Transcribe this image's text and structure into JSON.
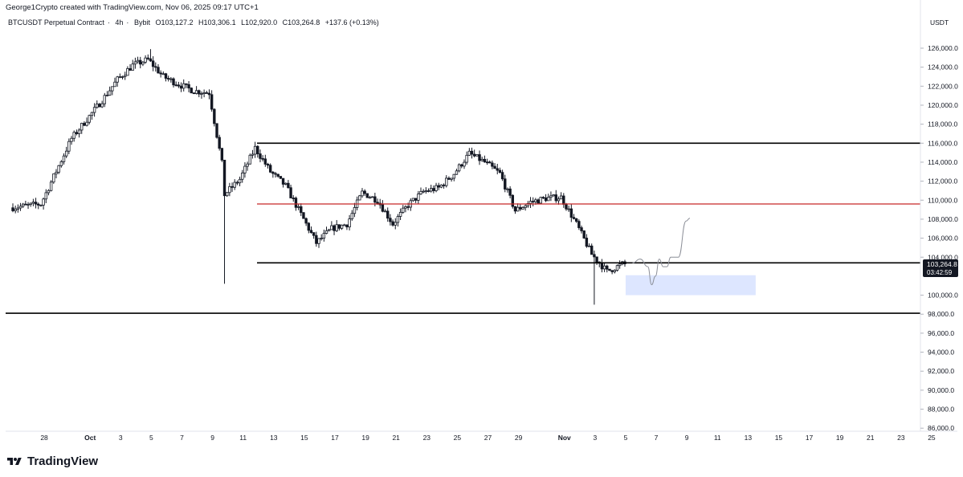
{
  "header": {
    "credit": "George1Crypto created with TradingView.com, Nov 06, 2025 09:17 UTC+1"
  },
  "symbol": {
    "name": "BTCUSDT Perpetual Contract",
    "interval": "4h",
    "exchange": "Bybit",
    "open": "O103,127.2",
    "high": "H103,306.1",
    "low": "L102,920.0",
    "close": "C103,264.8",
    "change": "+137.6 (+0.13%)"
  },
  "branding": {
    "name": "TradingView"
  },
  "chart_data": {
    "type": "candlestick",
    "currency": "USDT",
    "x_tick_labels": [
      "28",
      "Oct",
      "3",
      "5",
      "7",
      "9",
      "11",
      "13",
      "15",
      "17",
      "19",
      "21",
      "23",
      "25",
      "27",
      "29",
      "Nov",
      "3",
      "5",
      "7",
      "9",
      "11",
      "13",
      "15",
      "17",
      "19",
      "21",
      "23",
      "25"
    ],
    "y_tick_labels": [
      "126,000.0",
      "124,000.0",
      "122,000.0",
      "120,000.0",
      "118,000.0",
      "116,000.0",
      "114,000.0",
      "112,000.0",
      "110,000.0",
      "108,000.0",
      "106,000.0",
      "104,000.0",
      "100,000.0",
      "98,000.0",
      "96,000.0",
      "94,000.0",
      "92,000.0",
      "90,000.0",
      "88,000.0",
      "86,000.0"
    ],
    "ylim": [
      85200,
      129000
    ],
    "last_price": {
      "label": "103,264.8",
      "countdown": "03:42:59",
      "value": 103264.8
    },
    "price_path": [
      [
        "2025-09-27",
        109200
      ],
      [
        "2025-09-29",
        109600
      ],
      [
        "2025-10-01",
        116500
      ],
      [
        "2025-10-03",
        120500
      ],
      [
        "2025-10-04",
        122700
      ],
      [
        "2025-10-05",
        124200
      ],
      [
        "2025-10-06",
        124800
      ],
      [
        "2025-10-07",
        123000
      ],
      [
        "2025-10-08",
        122200
      ],
      [
        "2025-10-09",
        121500
      ],
      [
        "2025-10-10",
        121300
      ],
      [
        "2025-10-10T21:00",
        113500
      ],
      [
        "2025-10-11",
        110600
      ],
      [
        "2025-10-12",
        112200
      ],
      [
        "2025-10-13",
        115500
      ],
      [
        "2025-10-14",
        113000
      ],
      [
        "2025-10-15",
        111500
      ],
      [
        "2025-10-16",
        108500
      ],
      [
        "2025-10-17",
        105500
      ],
      [
        "2025-10-18",
        107000
      ],
      [
        "2025-10-19",
        107500
      ],
      [
        "2025-10-20",
        110800
      ],
      [
        "2025-10-21",
        110000
      ],
      [
        "2025-10-22",
        107500
      ],
      [
        "2025-10-23",
        109500
      ],
      [
        "2025-10-24",
        110900
      ],
      [
        "2025-10-25",
        111300
      ],
      [
        "2025-10-26",
        112800
      ],
      [
        "2025-10-27",
        114900
      ],
      [
        "2025-10-28",
        114000
      ],
      [
        "2025-10-29",
        112800
      ],
      [
        "2025-10-30",
        108900
      ],
      [
        "2025-10-31",
        109800
      ],
      [
        "2025-11-01",
        110200
      ],
      [
        "2025-11-02",
        110300
      ],
      [
        "2025-11-03",
        107500
      ],
      [
        "2025-11-04",
        104300
      ],
      [
        "2025-11-05",
        102500
      ],
      [
        "2025-11-06",
        103264.8
      ]
    ],
    "wick_extremes": [
      [
        "2025-10-10T21:00",
        101200
      ],
      [
        "2025-11-04",
        99000
      ],
      [
        "2025-10-06",
        125900
      ]
    ],
    "levels": [
      {
        "name": "range-high",
        "value": 116000,
        "color": "#000000"
      },
      {
        "name": "mid-range",
        "value": 109600,
        "color": "#c62828"
      },
      {
        "name": "range-low",
        "value": 103400,
        "color": "#000000"
      },
      {
        "name": "support",
        "value": 98100,
        "color": "#000000"
      }
    ],
    "zone": {
      "from": "2025-11-05",
      "to": "2025-11-13T12:00",
      "low": 100000,
      "high": 102100,
      "color": "#dde6ff"
    },
    "projection": [
      [
        "2025-11-06T12:00",
        103400
      ],
      [
        "2025-11-07",
        103800
      ],
      [
        "2025-11-07T12:00",
        103000
      ],
      [
        "2025-11-07T18:00",
        101100
      ],
      [
        "2025-11-08",
        102000
      ],
      [
        "2025-11-08T06:00",
        103800
      ],
      [
        "2025-11-08T12:00",
        103000
      ],
      [
        "2025-11-08T18:00",
        103000
      ],
      [
        "2025-11-09",
        104000
      ],
      [
        "2025-11-09T12:00",
        104000
      ],
      [
        "2025-11-10",
        107800
      ],
      [
        "2025-11-10T06:00",
        108100
      ]
    ]
  }
}
